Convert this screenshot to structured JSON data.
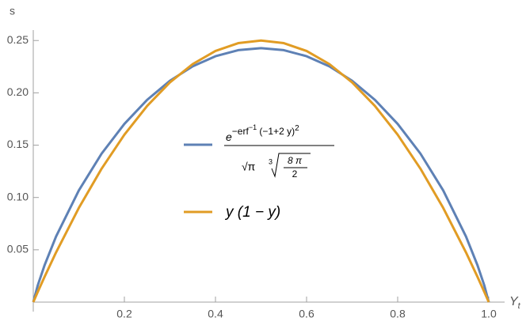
{
  "chart_data": {
    "type": "line",
    "y_label": "s",
    "x_label": {
      "main": "Y",
      "subscript": "t"
    },
    "x": [
      0,
      0.01,
      0.025,
      0.05,
      0.1,
      0.15,
      0.2,
      0.25,
      0.3,
      0.35,
      0.4,
      0.45,
      0.5,
      0.55,
      0.6,
      0.65,
      0.7,
      0.75,
      0.8,
      0.85,
      0.9,
      0.95,
      0.975,
      0.99,
      1
    ],
    "series": [
      {
        "name": {
          "numerator_base": "e",
          "numerator_exponent": "−erf",
          "inverse": "−1",
          "argument": " (−1+2 y)",
          "square": "2",
          "sqrt_pi": "√π",
          "root_index": "3",
          "radicand_numerator": "8 π",
          "radicand_denominator": "2"
        },
        "color": "#5e81b5",
        "values": [
          0,
          0.0162,
          0.0355,
          0.0627,
          0.1067,
          0.1419,
          0.1703,
          0.1933,
          0.2115,
          0.2253,
          0.235,
          0.2408,
          0.2427,
          0.2408,
          0.235,
          0.2253,
          0.2115,
          0.1933,
          0.1703,
          0.1419,
          0.1067,
          0.0627,
          0.0355,
          0.0162,
          0
        ]
      },
      {
        "name": "y (1 − y)",
        "color": "#e19c24",
        "values": [
          0,
          0.0099,
          0.024375,
          0.0475,
          0.09,
          0.1275,
          0.16,
          0.1875,
          0.21,
          0.2275,
          0.24,
          0.2475,
          0.25,
          0.2475,
          0.24,
          0.2275,
          0.21,
          0.1875,
          0.16,
          0.1275,
          0.09,
          0.0475,
          0.024375,
          0.0099,
          0
        ]
      }
    ],
    "xlim": [
      0,
      1
    ],
    "ylim": [
      0,
      0.26
    ],
    "xticks": [
      0.2,
      0.4,
      0.6,
      0.8,
      {
        "value": 1,
        "label": "1.0"
      }
    ],
    "yticks": [
      0.05,
      {
        "value": 0.1,
        "label": "0.10"
      },
      0.15,
      {
        "value": 0.2,
        "label": "0.20"
      },
      0.25
    ]
  }
}
